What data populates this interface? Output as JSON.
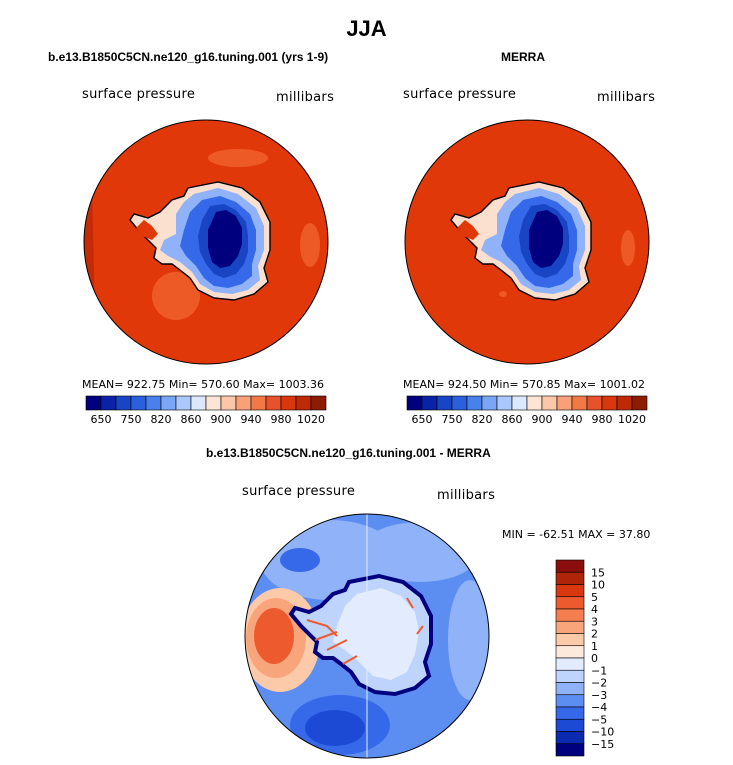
{
  "figure_title": "JJA",
  "colors": {
    "panel_scale": [
      "#00007f",
      "#0a22a8",
      "#1845c4",
      "#2a60dc",
      "#4a80ec",
      "#7aa6f5",
      "#aac8fb",
      "#dbe8fe",
      "#fde5d6",
      "#fcc7a8",
      "#f8a078",
      "#f27848",
      "#e8522a",
      "#d9380e",
      "#bf2a06",
      "#8e1c03"
    ],
    "diff_scale": [
      "#00007f",
      "#0a2ab0",
      "#1c4ad4",
      "#3668ea",
      "#5c8ef2",
      "#8fb2f8",
      "#bed4fc",
      "#e2ecfe",
      "#fde8dc",
      "#fccaa8",
      "#f9a57c",
      "#f47e50",
      "#ec5a2e",
      "#d9380e",
      "#b0240a",
      "#8a0e0e"
    ]
  },
  "chart_data": [
    {
      "type": "heatmap",
      "projection": "south-polar-stereographic",
      "title": "b.e13.B1850C5CN.ne120_g16.tuning.001 (yrs 1-9)",
      "variable_label": "surface pressure",
      "units_label": "millibars",
      "stats": {
        "mean": "922.75",
        "min": "570.60",
        "max": "1003.36"
      },
      "stats_text": "MEAN= 922.75   Min= 570.60   Max= 1003.36",
      "colorbar": {
        "orientation": "horizontal",
        "levels": [
          650,
          700,
          750,
          780,
          820,
          840,
          860,
          880,
          900,
          920,
          940,
          960,
          980,
          1000,
          1020
        ],
        "tick_labels": [
          "650",
          "750",
          "820",
          "860",
          "900",
          "940",
          "980",
          "1020"
        ]
      }
    },
    {
      "type": "heatmap",
      "projection": "south-polar-stereographic",
      "title": "MERRA",
      "variable_label": "surface pressure",
      "units_label": "millibars",
      "stats": {
        "mean": "924.50",
        "min": "570.85",
        "max": "1001.02"
      },
      "stats_text": "MEAN= 924.50   Min= 570.85   Max= 1001.02",
      "colorbar": {
        "orientation": "horizontal",
        "levels": [
          650,
          700,
          750,
          780,
          820,
          840,
          860,
          880,
          900,
          920,
          940,
          960,
          980,
          1000,
          1020
        ],
        "tick_labels": [
          "650",
          "750",
          "820",
          "860",
          "900",
          "940",
          "980",
          "1020"
        ]
      }
    },
    {
      "type": "heatmap",
      "projection": "south-polar-stereographic",
      "title": "b.e13.B1850C5CN.ne120_g16.tuning.001 - MERRA",
      "variable_label": "surface pressure",
      "units_label": "millibars",
      "stats": {
        "min": "-62.51",
        "max": "37.80"
      },
      "stats_text": "MIN = -62.51  MAX =  37.80",
      "colorbar": {
        "orientation": "vertical",
        "levels": [
          -15,
          -10,
          -5,
          -4,
          -3,
          -2,
          -1,
          0,
          1,
          2,
          3,
          4,
          5,
          10,
          15
        ],
        "tick_labels": [
          "15",
          "10",
          "5",
          "4",
          "3",
          "2",
          "1",
          "0",
          "−1",
          "−2",
          "−3",
          "−4",
          "−5",
          "−10",
          "−15"
        ]
      }
    }
  ]
}
